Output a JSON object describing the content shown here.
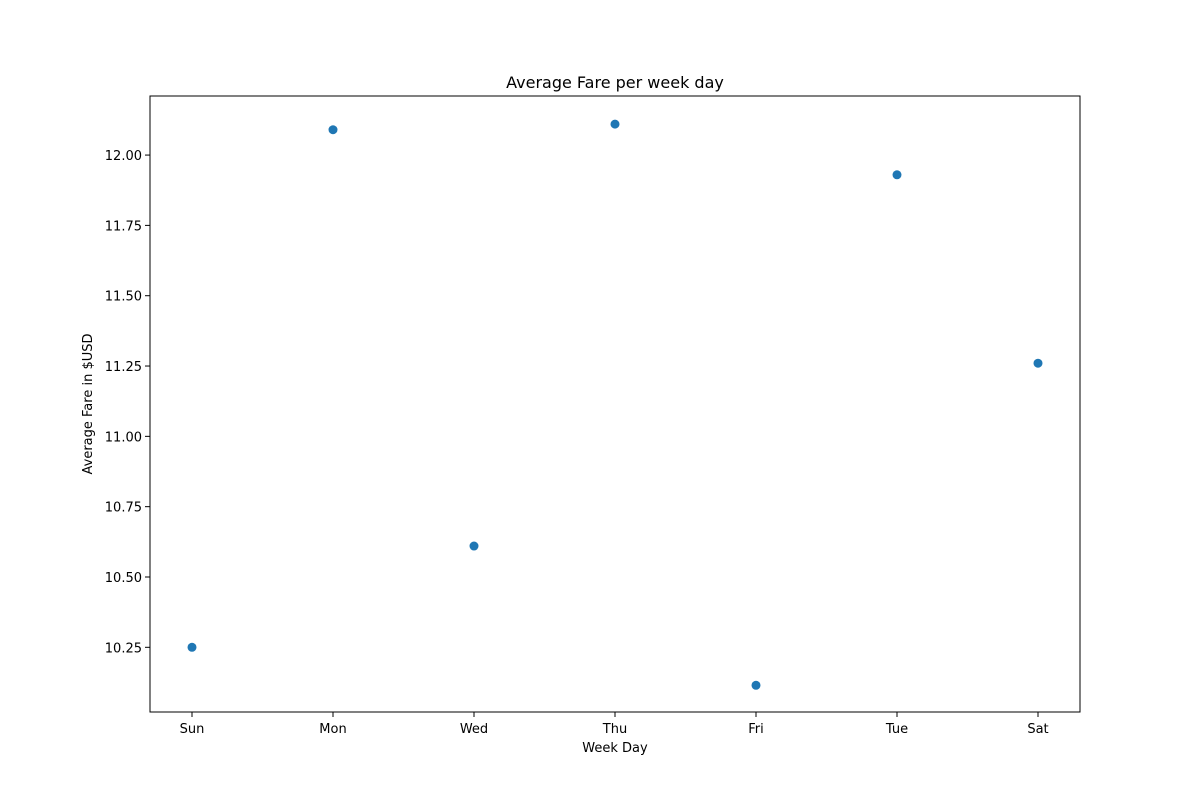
{
  "chart_data": {
    "type": "scatter",
    "title": "Average Fare per week day",
    "xlabel": "Week Day",
    "ylabel": "Average Fare in $USD",
    "categories": [
      "Sun",
      "Mon",
      "Wed",
      "Thu",
      "Fri",
      "Tue",
      "Sat"
    ],
    "values": [
      10.25,
      12.09,
      10.61,
      12.11,
      10.115,
      11.93,
      11.26
    ],
    "ylim": [
      10.02,
      12.21
    ],
    "yticks": [
      "10.25",
      "10.50",
      "10.75",
      "11.00",
      "11.25",
      "11.50",
      "11.75",
      "12.00"
    ],
    "grid": false,
    "color": "#1f77b4"
  }
}
